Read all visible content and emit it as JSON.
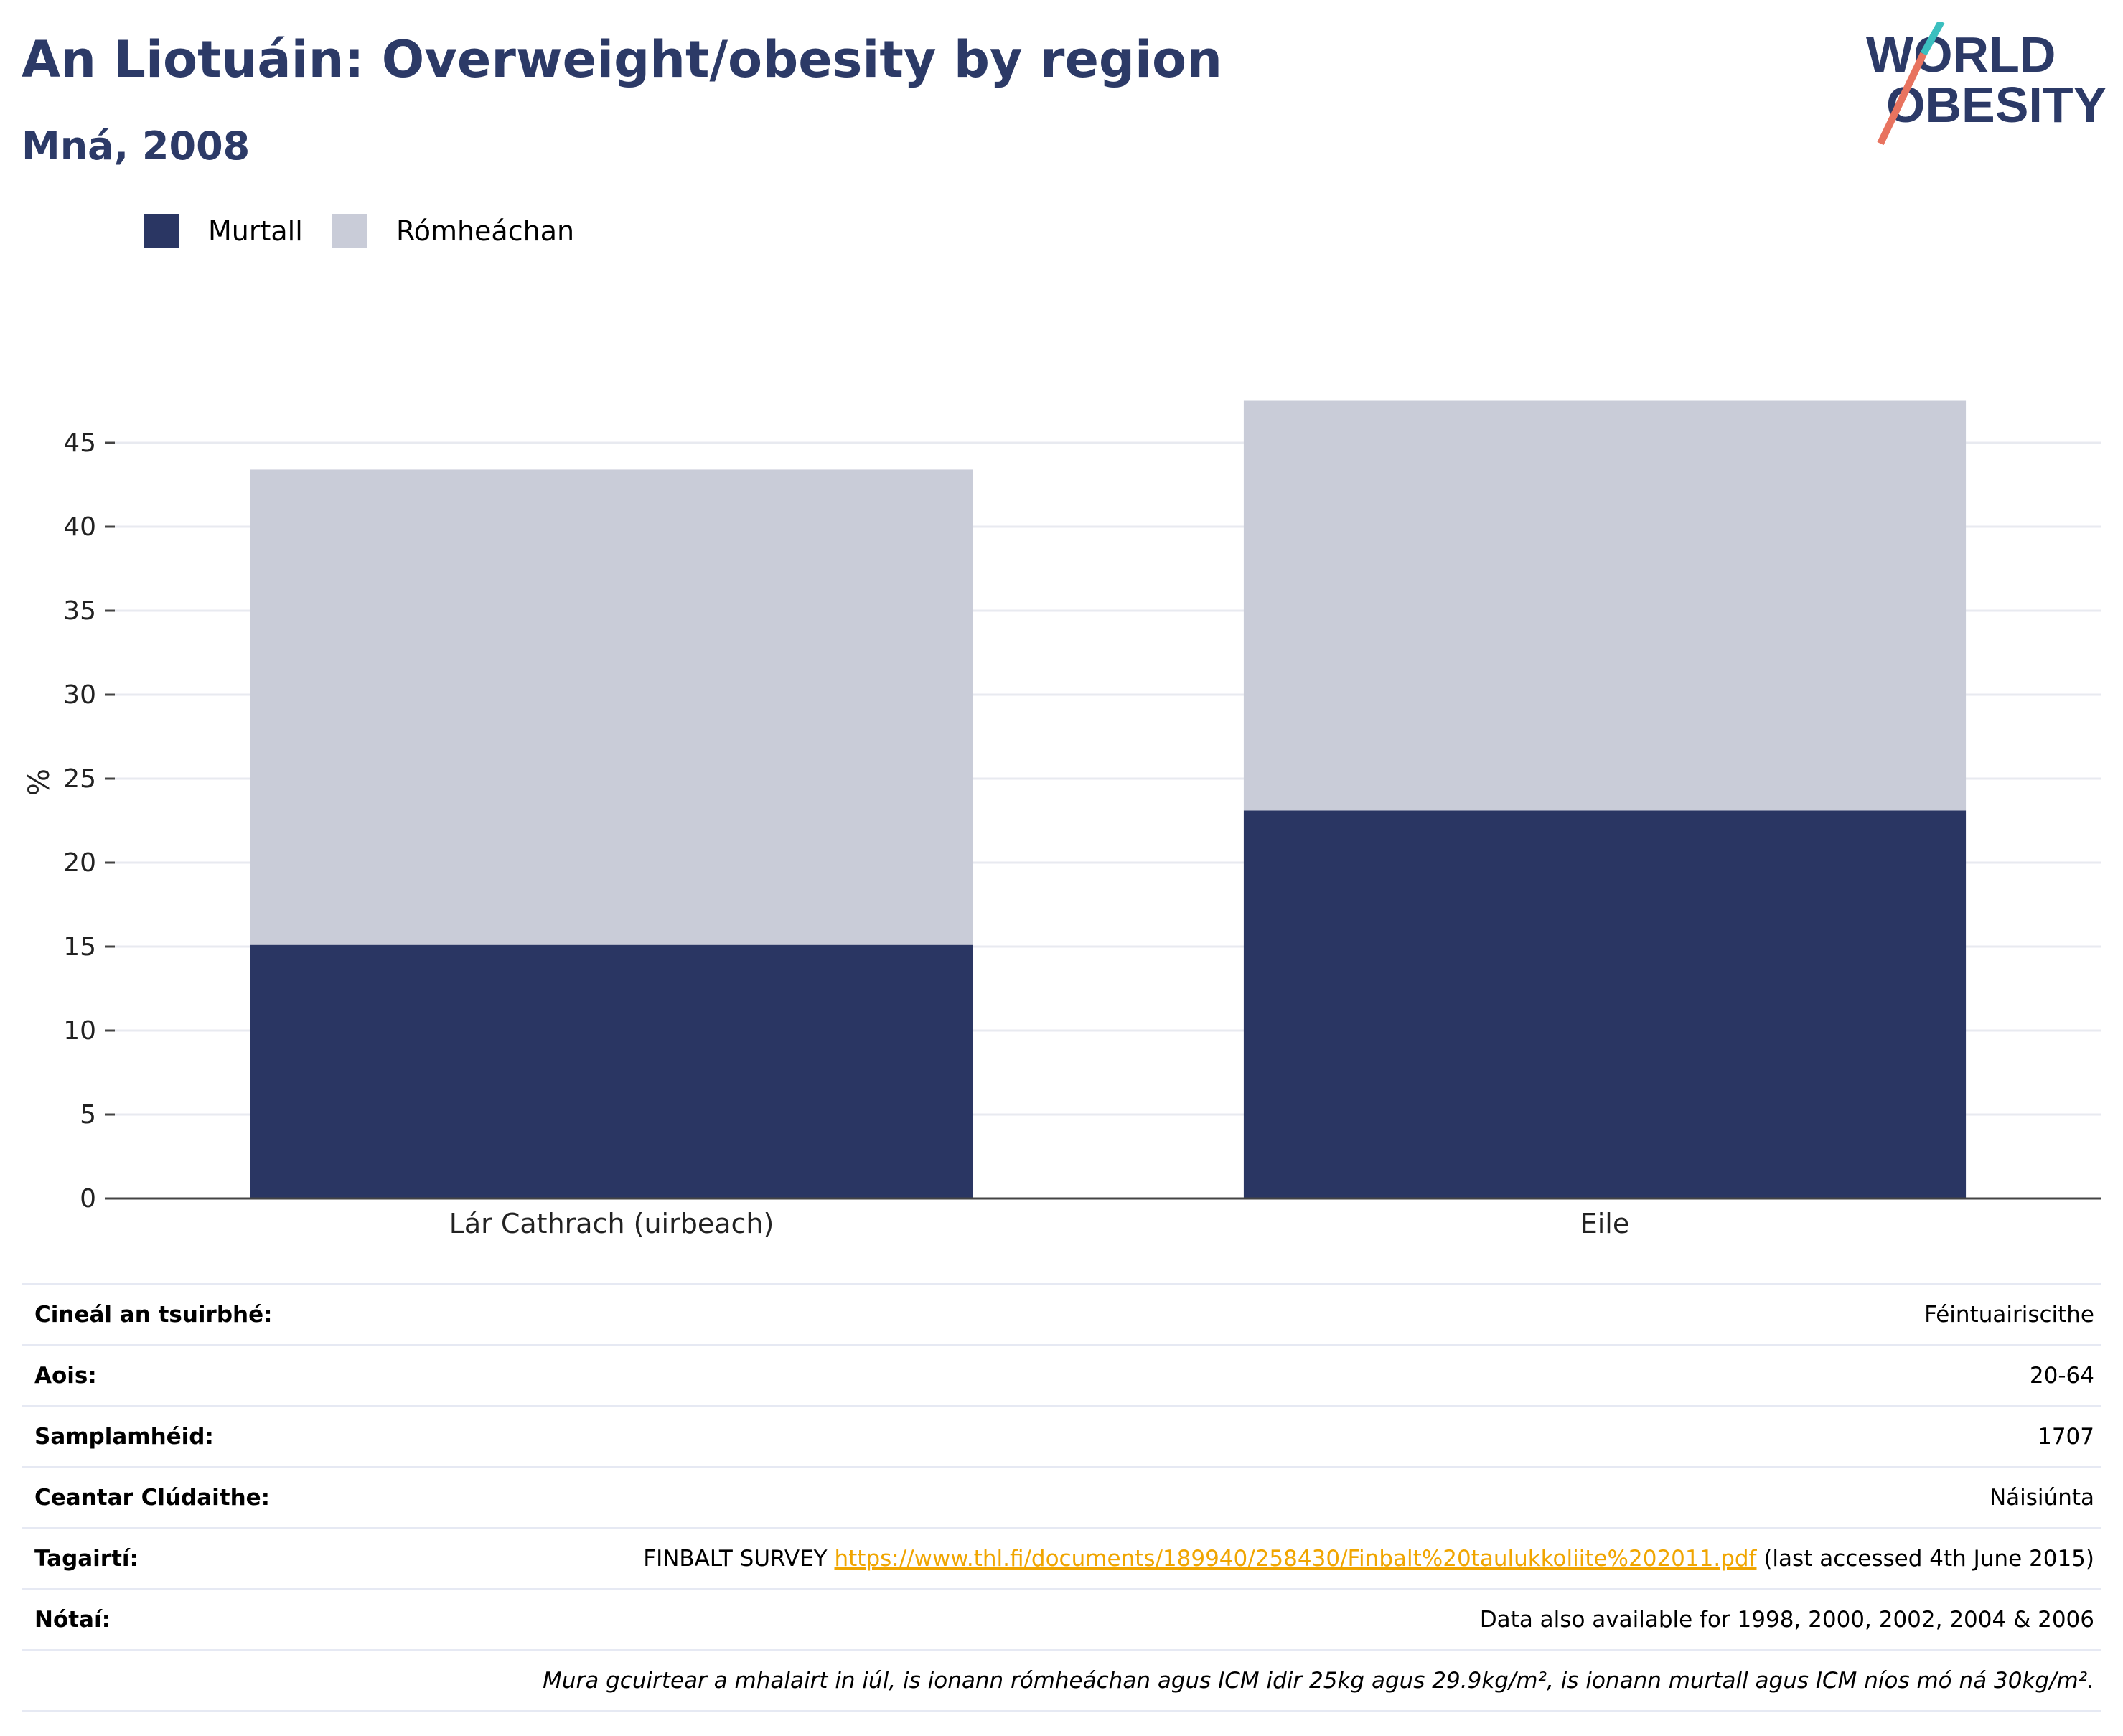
{
  "title": "An Liotuáin: Overweight/obesity by region",
  "subtitle": "Mná, 2008",
  "logo": {
    "line1": "WORLD",
    "line2": "OBESITY",
    "accent_colors": [
      "#3bbfbf",
      "#e8735f"
    ]
  },
  "legend": [
    {
      "label": "Murtall",
      "color": "#2a3663"
    },
    {
      "label": "Rómheáchan",
      "color": "#c9ccd8"
    }
  ],
  "chart_data": {
    "type": "bar",
    "stacked": true,
    "categories": [
      "Lár Cathrach (uirbeach)",
      "Eile"
    ],
    "series": [
      {
        "name": "Murtall",
        "values": [
          15.1,
          23.1
        ],
        "color": "#2a3663"
      },
      {
        "name": "Rómheáchan",
        "values": [
          28.3,
          24.4
        ],
        "color": "#c9ccd8"
      }
    ],
    "ylabel": "%",
    "xlabel": "",
    "ylim": [
      0,
      47.5
    ],
    "yticks": [
      0,
      5,
      10,
      15,
      20,
      25,
      30,
      35,
      40,
      45
    ],
    "grid": true,
    "legend_position": "top-left"
  },
  "info": [
    {
      "key": "Cineál an tsuirbhé:",
      "value": "Féintuairiscithe"
    },
    {
      "key": "Aois:",
      "value": "20-64"
    },
    {
      "key": "Samplamhéid:",
      "value": "1707"
    },
    {
      "key": "Ceantar Clúdaithe:",
      "value": "Náisiúnta"
    },
    {
      "key": "Tagairtí:",
      "prefix": "FINBALT SURVEY ",
      "link": "https://www.thl.fi/documents/189940/258430/Finbalt%20taulukkoliite%202011.pdf",
      "suffix": " (last accessed 4th June 2015)"
    },
    {
      "key": "Nótaí:",
      "value": "Data also available for 1998, 2000, 2002, 2004 & 2006"
    },
    {
      "key": "",
      "value": "Mura gcuirtear a mhalairt in iúl, is ionann rómheáchan agus ICM idir 25kg agus 29.9kg/m², is ionann murtall agus ICM níos mó ná 30kg/m²."
    }
  ]
}
